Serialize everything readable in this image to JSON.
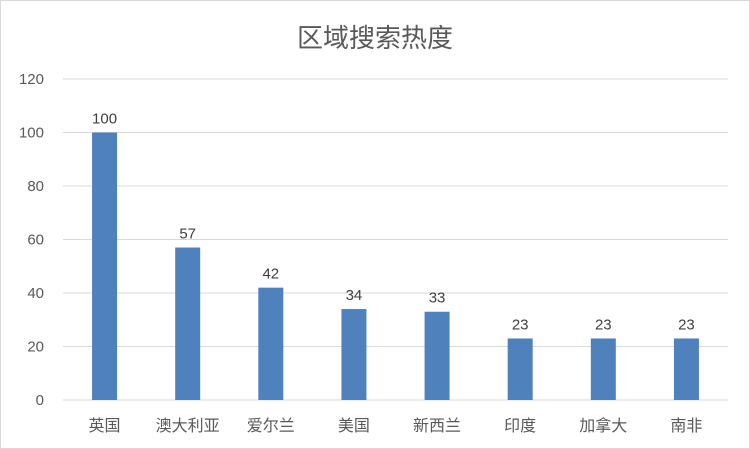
{
  "chart_data": {
    "type": "bar",
    "title": "区域搜索热度",
    "categories": [
      "英国",
      "澳大利亚",
      "爱尔兰",
      "美国",
      "新西兰",
      "印度",
      "加拿大",
      "南非"
    ],
    "values": [
      100,
      57,
      42,
      34,
      33,
      23,
      23,
      23
    ],
    "ylim": [
      0,
      120
    ],
    "yticks": [
      0,
      20,
      40,
      60,
      80,
      100,
      120
    ],
    "grid": true,
    "legend": "none",
    "data_labels": true,
    "colors": {
      "bar": "#4f81bd",
      "grid": "#d9d9d9",
      "text": "#595959"
    }
  }
}
